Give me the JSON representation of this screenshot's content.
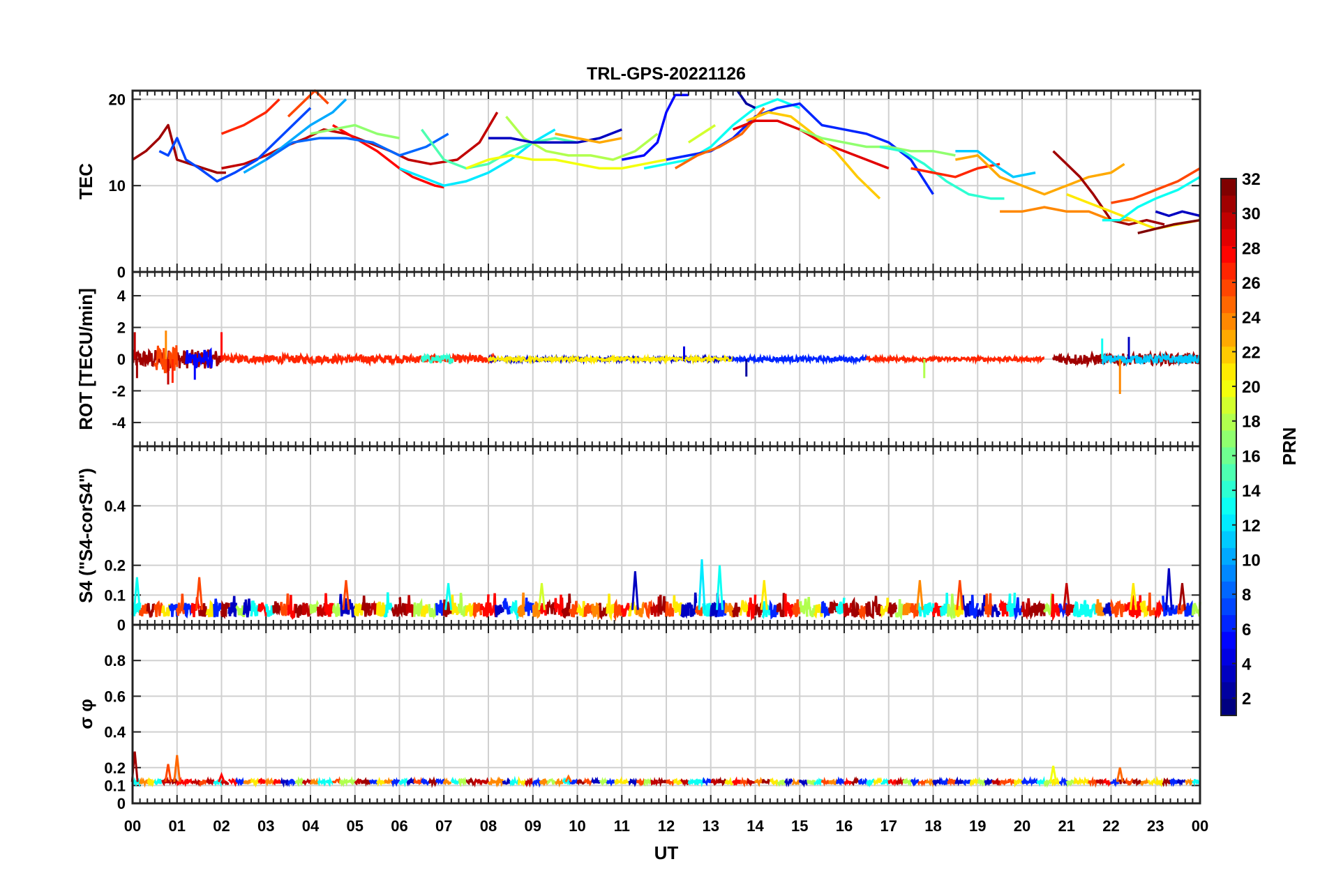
{
  "chart_data": {
    "type": "line",
    "title": "TRL-GPS-20221126",
    "xlabel": "UT",
    "x_ticks": [
      "00",
      "01",
      "02",
      "03",
      "04",
      "05",
      "06",
      "07",
      "08",
      "09",
      "10",
      "11",
      "12",
      "13",
      "14",
      "15",
      "16",
      "17",
      "18",
      "19",
      "20",
      "21",
      "22",
      "23",
      "00"
    ],
    "xlim": [
      0,
      24
    ],
    "grid": true,
    "colorbar": {
      "label": "PRN",
      "ticks": [
        "2",
        "4",
        "6",
        "8",
        "10",
        "12",
        "14",
        "16",
        "18",
        "20",
        "22",
        "24",
        "26",
        "28",
        "30",
        "32"
      ],
      "range": [
        1,
        32
      ],
      "colormap": "jet",
      "placement": "right"
    },
    "panels": [
      {
        "ylabel": "TEC",
        "ylim": [
          0,
          21
        ],
        "y_ticks": [
          "0",
          "10",
          "20"
        ],
        "y_tick_values": [
          0,
          10,
          20
        ],
        "series": [
          {
            "prn": 31,
            "x": [
              0.0,
              0.3,
              0.6,
              0.8,
              1.0,
              1.3,
              1.6,
              1.9,
              2.1
            ],
            "y": [
              13,
              14,
              15.5,
              17,
              13,
              12.5,
              12,
              11.5,
              11.5
            ]
          },
          {
            "prn": 30,
            "x": [
              2.0,
              2.5,
              3.0,
              3.4,
              3.9,
              4.3,
              4.8,
              5.3,
              5.8,
              6.2,
              6.7,
              7.3,
              7.8,
              8.2
            ],
            "y": [
              12,
              12.5,
              13.5,
              14.5,
              15.5,
              16.5,
              16,
              15,
              14,
              13,
              12.5,
              13,
              15,
              18.5
            ]
          },
          {
            "prn": 27,
            "x": [
              2.0,
              2.5,
              3.0,
              3.3
            ],
            "y": [
              16,
              17,
              18.5,
              20
            ]
          },
          {
            "prn": 26,
            "x": [
              3.5,
              3.8,
              4.1,
              4.4
            ],
            "y": [
              18,
              19.5,
              21,
              19.5
            ]
          },
          {
            "prn": 28,
            "x": [
              4.5,
              5.0,
              5.5,
              6.0,
              6.3,
              6.8,
              7.0
            ],
            "y": [
              17,
              15.5,
              14,
              12,
              11,
              10,
              9.8
            ]
          },
          {
            "prn": 7,
            "x": [
              0.6,
              0.8,
              1.0,
              1.2,
              1.5,
              1.9,
              2.3,
              2.8,
              3.4,
              4.0
            ],
            "y": [
              14,
              13.5,
              15.5,
              13,
              12,
              10.5,
              11.5,
              13,
              16,
              19
            ]
          },
          {
            "prn": 10,
            "x": [
              2.5,
              3.0,
              3.5,
              4.0,
              4.5,
              4.8
            ],
            "y": [
              11.5,
              13,
              15,
              17,
              18.5,
              20
            ]
          },
          {
            "prn": 8,
            "x": [
              3.0,
              3.6,
              4.2,
              4.8,
              5.4,
              6.0,
              6.6,
              7.1
            ],
            "y": [
              13,
              15,
              15.5,
              15.5,
              15,
              13.5,
              14.5,
              16
            ]
          },
          {
            "prn": 17,
            "x": [
              4.0,
              4.5,
              5.0,
              5.5,
              6.0
            ],
            "y": [
              16,
              16.5,
              17,
              16,
              15.5
            ]
          },
          {
            "prn": 12,
            "x": [
              6.0,
              6.5,
              7.0,
              7.5,
              8.0,
              8.5,
              9.0,
              9.5
            ],
            "y": [
              12,
              11,
              10,
              10.5,
              11.5,
              13,
              15,
              16.5
            ]
          },
          {
            "prn": 15,
            "x": [
              6.5,
              7.0,
              7.5,
              8.0,
              8.5,
              9.0,
              9.5,
              10.0
            ],
            "y": [
              16.5,
              13,
              12,
              12.5,
              14,
              15,
              15.5,
              15
            ]
          },
          {
            "prn": 20,
            "x": [
              7.5,
              8.0,
              8.5,
              9.0,
              9.5,
              10.0,
              10.5,
              11.0,
              11.5,
              12.0
            ],
            "y": [
              12,
              13,
              13.5,
              13,
              13,
              12.5,
              12,
              12,
              12.5,
              13
            ]
          },
          {
            "prn": 18,
            "x": [
              8.4,
              8.8,
              9.3,
              9.8,
              10.3,
              10.8,
              11.3,
              11.8
            ],
            "y": [
              18,
              15.5,
              14,
              13.5,
              13.5,
              13,
              14,
              16
            ]
          },
          {
            "prn": 3,
            "x": [
              8.0,
              8.5,
              9.0,
              9.5,
              10.0,
              10.5,
              11.0
            ],
            "y": [
              15.5,
              15.5,
              15,
              15,
              15,
              15.5,
              16.5
            ]
          },
          {
            "prn": 23,
            "x": [
              9.5,
              10.0,
              10.5,
              11.0
            ],
            "y": [
              16,
              15.5,
              15,
              15.5
            ]
          },
          {
            "prn": 5,
            "x": [
              11.0,
              11.5,
              11.8,
              12.0,
              12.2,
              12.5
            ],
            "y": [
              13,
              13.5,
              15,
              18.5,
              20.5,
              20.5
            ]
          },
          {
            "prn": 13,
            "x": [
              11.5,
              12.0,
              12.5,
              13.0,
              13.5,
              14.0,
              14.5,
              15.0
            ],
            "y": [
              12,
              12.5,
              13,
              14.5,
              17,
              19,
              20,
              19
            ]
          },
          {
            "prn": 6,
            "x": [
              12.0,
              12.5,
              13.0,
              13.5,
              14.0,
              14.5,
              15.0,
              15.5,
              16.0,
              16.5,
              17.0,
              17.5,
              18.0
            ],
            "y": [
              13,
              13.5,
              14,
              15.5,
              18,
              19,
              19.5,
              17,
              16.5,
              16,
              15,
              13,
              9
            ]
          },
          {
            "prn": 25,
            "x": [
              12.2,
              12.7,
              13.2,
              13.7,
              14.2
            ],
            "y": [
              12,
              13.5,
              14.5,
              16,
              19
            ]
          },
          {
            "prn": 19,
            "x": [
              12.5,
              12.8,
              13.1
            ],
            "y": [
              15,
              16,
              17
            ]
          },
          {
            "prn": 29,
            "x": [
              13.5,
              14.0,
              14.5,
              15.0,
              15.5,
              16.0,
              16.5,
              17.0
            ],
            "y": [
              16.5,
              17.5,
              17.5,
              16.5,
              15,
              14,
              13,
              12
            ]
          },
          {
            "prn": 22,
            "x": [
              13.8,
              14.3,
              14.8,
              15.3,
              15.8,
              16.3,
              16.8
            ],
            "y": [
              17.5,
              18.5,
              18,
              16,
              14,
              11,
              8.5
            ]
          },
          {
            "prn": 2,
            "x": [
              13.6,
              13.8,
              14.0
            ],
            "y": [
              21,
              19.5,
              19
            ]
          },
          {
            "prn": 17,
            "x": [
              15.0,
              15.5,
              16.0,
              16.5,
              17.0,
              17.5,
              18.0,
              18.5
            ],
            "y": [
              16.5,
              15.5,
              15,
              14.5,
              14.5,
              14,
              14,
              13.5
            ]
          },
          {
            "prn": 14,
            "x": [
              16.8,
              17.3,
              17.8,
              18.3,
              18.8,
              19.3,
              19.6
            ],
            "y": [
              14.5,
              14,
              12.5,
              10.5,
              9,
              8.5,
              8.5
            ]
          },
          {
            "prn": 27,
            "x": [
              17.5,
              18.0,
              18.5,
              19.0,
              19.5
            ],
            "y": [
              12,
              11.5,
              11,
              12,
              12.5
            ]
          },
          {
            "prn": 11,
            "x": [
              18.5,
              19.0,
              19.5,
              19.8,
              20.3
            ],
            "y": [
              14,
              14,
              12,
              11,
              11.5
            ]
          },
          {
            "prn": 23,
            "x": [
              18.5,
              19.0,
              19.5,
              20.0,
              20.5,
              21.0,
              21.5,
              22.0,
              22.3
            ],
            "y": [
              13,
              13.5,
              11,
              10,
              9,
              10,
              11,
              11.5,
              12.5
            ]
          },
          {
            "prn": 24,
            "x": [
              19.5,
              20.0,
              20.5,
              21.0,
              21.5,
              22.0,
              22.5
            ],
            "y": [
              7,
              7,
              7.5,
              7,
              7,
              6,
              6
            ]
          },
          {
            "prn": 31,
            "x": [
              20.7,
              21.0,
              21.3,
              21.6,
              22.0,
              22.4,
              22.8,
              23.2
            ],
            "y": [
              14,
              12.5,
              11,
              9,
              6,
              5.5,
              6,
              5.5
            ]
          },
          {
            "prn": 21,
            "x": [
              21.0,
              21.5,
              22.0,
              22.5,
              23.0,
              23.5,
              24.0
            ],
            "y": [
              9,
              8,
              7,
              6,
              5,
              5.5,
              6
            ]
          },
          {
            "prn": 26,
            "x": [
              22.0,
              22.5,
              23.0,
              23.5,
              24.0
            ],
            "y": [
              8,
              8.5,
              9.5,
              10.5,
              12
            ]
          },
          {
            "prn": 13,
            "x": [
              21.8,
              22.2,
              22.6,
              23.0,
              23.5,
              24.0
            ],
            "y": [
              6,
              6,
              7.5,
              8.5,
              9.5,
              11
            ]
          },
          {
            "prn": 3,
            "x": [
              23.0,
              23.3,
              23.6,
              24.0
            ],
            "y": [
              7,
              6.5,
              7,
              6.5
            ]
          },
          {
            "prn": 32,
            "x": [
              22.6,
              23.0,
              23.4,
              24.0
            ],
            "y": [
              4.5,
              5,
              5.5,
              6
            ]
          }
        ]
      },
      {
        "ylabel": "ROT [TECU/min]",
        "ylim": [
          -5.5,
          5.5
        ],
        "y_ticks": [
          "-4",
          "-2",
          "0",
          "2",
          "4"
        ],
        "y_tick_values": [
          -4,
          -2,
          0,
          2,
          4
        ],
        "noise_spans": [
          {
            "prn": 31,
            "x": [
              0.0,
              2.0
            ],
            "amp": 0.6
          },
          {
            "prn": 26,
            "x": [
              0.5,
              1.0
            ],
            "amp": 0.9
          },
          {
            "prn": 5,
            "x": [
              1.2,
              1.8
            ],
            "amp": 0.6
          },
          {
            "prn": 27,
            "x": [
              2.0,
              8.2
            ],
            "amp": 0.25
          },
          {
            "prn": 14,
            "x": [
              6.5,
              7.2
            ],
            "amp": 0.25
          },
          {
            "prn": 3,
            "x": [
              8.0,
              13.5
            ],
            "amp": 0.12
          },
          {
            "prn": 21,
            "x": [
              8.0,
              13.5
            ],
            "amp": 0.12
          },
          {
            "prn": 6,
            "x": [
              13.5,
              16.5
            ],
            "amp": 0.15
          },
          {
            "prn": 27,
            "x": [
              16.5,
              20.5
            ],
            "amp": 0.12
          },
          {
            "prn": 31,
            "x": [
              20.7,
              24.0
            ],
            "amp": 0.35
          },
          {
            "prn": 11,
            "x": [
              21.8,
              24.0
            ],
            "amp": 0.25
          }
        ],
        "spikes": [
          [
            0.05,
            1.7,
            30
          ],
          [
            0.1,
            -1.2,
            31
          ],
          [
            0.75,
            1.8,
            24
          ],
          [
            0.8,
            -1.6,
            30
          ],
          [
            0.9,
            -1.5,
            27
          ],
          [
            1.4,
            -1.3,
            5
          ],
          [
            2.0,
            1.7,
            28
          ],
          [
            13.8,
            -1.1,
            2
          ],
          [
            17.8,
            -1.2,
            18
          ],
          [
            22.2,
            -2.2,
            24
          ],
          [
            22.4,
            1.4,
            3
          ],
          [
            21.8,
            1.3,
            13
          ],
          [
            12.4,
            0.8,
            4
          ]
        ]
      },
      {
        "ylabel": "S4 (\"S4-corS4\")",
        "ylim": [
          0,
          0.6
        ],
        "y_ticks": [
          "0",
          "0.1",
          "0.2",
          "0.4"
        ],
        "y_tick_values": [
          0,
          0.1,
          0.2,
          0.4
        ],
        "baseline": 0.05,
        "peaks": [
          [
            0.1,
            0.16,
            13
          ],
          [
            1.5,
            0.16,
            26
          ],
          [
            4.8,
            0.15,
            26
          ],
          [
            7.1,
            0.14,
            13
          ],
          [
            9.2,
            0.14,
            19
          ],
          [
            11.3,
            0.18,
            3
          ],
          [
            12.8,
            0.22,
            12
          ],
          [
            13.2,
            0.2,
            13
          ],
          [
            14.2,
            0.15,
            21
          ],
          [
            17.7,
            0.15,
            24
          ],
          [
            18.6,
            0.15,
            26
          ],
          [
            21.0,
            0.14,
            30
          ],
          [
            22.5,
            0.14,
            21
          ],
          [
            23.3,
            0.19,
            3
          ],
          [
            23.6,
            0.14,
            31
          ]
        ]
      },
      {
        "ylabel": "σ φ",
        "ylim": [
          0,
          1.0
        ],
        "y_ticks": [
          "0",
          "0.1",
          "0.2",
          "0.4",
          "0.6",
          "0.8"
        ],
        "y_tick_values": [
          0,
          0.1,
          0.2,
          0.4,
          0.6,
          0.8
        ],
        "baseline": 0.12,
        "peaks": [
          [
            0.05,
            0.29,
            31
          ],
          [
            0.8,
            0.22,
            26
          ],
          [
            1.0,
            0.27,
            25
          ],
          [
            2.0,
            0.16,
            28
          ],
          [
            9.8,
            0.15,
            25
          ],
          [
            20.7,
            0.21,
            20
          ],
          [
            22.2,
            0.2,
            25
          ]
        ]
      }
    ]
  }
}
